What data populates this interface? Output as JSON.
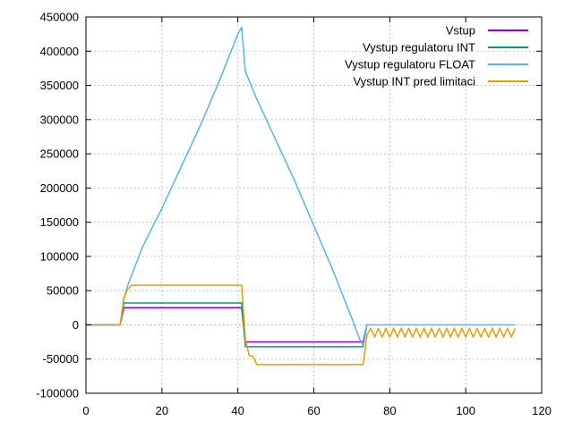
{
  "chart_data": {
    "type": "line",
    "title": "",
    "xlabel": "",
    "ylabel": "",
    "xlim": [
      0,
      120
    ],
    "ylim": [
      -100000,
      450000
    ],
    "grid": true,
    "legend_position": "top-right",
    "x_ticks": [
      0,
      20,
      40,
      60,
      80,
      100,
      120
    ],
    "x_tick_labels": [
      "0",
      "20",
      "40",
      "60",
      "80",
      "100",
      "120"
    ],
    "y_ticks": [
      -100000,
      -50000,
      0,
      50000,
      100000,
      150000,
      200000,
      250000,
      300000,
      350000,
      400000,
      450000
    ],
    "y_tick_labels": [
      "-100000",
      "-50000",
      "0",
      "50000",
      "100000",
      "150000",
      "200000",
      "250000",
      "300000",
      "350000",
      "400000",
      "450000"
    ],
    "series": [
      {
        "name": "Vstup",
        "color": "#9400d3",
        "points": [
          [
            0,
            0
          ],
          [
            9,
            0
          ],
          [
            10,
            25000
          ],
          [
            41,
            25000
          ],
          [
            42,
            -25000
          ],
          [
            73,
            -25000
          ],
          [
            74,
            0
          ]
        ]
      },
      {
        "name": "Vystup regulatoru   INT",
        "color": "#009e73",
        "points": [
          [
            0,
            0
          ],
          [
            9,
            0
          ],
          [
            10,
            32000
          ],
          [
            41,
            32000
          ],
          [
            42,
            -32000
          ],
          [
            73,
            -32000
          ],
          [
            74,
            0
          ]
        ]
      },
      {
        "name": "Vystup regulatoru FLOAT",
        "color": "#56b4e9",
        "points": [
          [
            0,
            0
          ],
          [
            9,
            0
          ],
          [
            10,
            38000
          ],
          [
            11,
            58000
          ],
          [
            15,
            115000
          ],
          [
            20,
            170000
          ],
          [
            25,
            230000
          ],
          [
            30,
            290000
          ],
          [
            35,
            355000
          ],
          [
            40,
            425000
          ],
          [
            41,
            435000
          ],
          [
            42,
            370000
          ],
          [
            45,
            330000
          ],
          [
            50,
            270000
          ],
          [
            55,
            210000
          ],
          [
            60,
            145000
          ],
          [
            65,
            80000
          ],
          [
            70,
            10000
          ],
          [
            72,
            -20000
          ],
          [
            73,
            -30000
          ],
          [
            74,
            0
          ],
          [
            80,
            0
          ],
          [
            90,
            0
          ],
          [
            100,
            0
          ],
          [
            113,
            0
          ]
        ]
      },
      {
        "name": "Vystup INT pred limitaci",
        "color": "#e69f00",
        "points": [
          [
            0,
            0
          ],
          [
            9,
            0
          ],
          [
            10,
            40000
          ],
          [
            11,
            52000
          ],
          [
            12,
            58000
          ],
          [
            41,
            58000
          ],
          [
            42,
            -22000
          ],
          [
            43,
            -45000
          ],
          [
            44,
            -46000
          ],
          [
            45,
            -58000
          ],
          [
            73,
            -58000
          ],
          [
            74,
            -15000
          ],
          [
            75,
            -5000
          ],
          [
            76,
            -18000
          ],
          [
            77,
            -5000
          ],
          [
            78,
            -18000
          ],
          [
            79,
            -5000
          ],
          [
            80,
            -18000
          ],
          [
            81,
            -5000
          ],
          [
            82,
            -18000
          ],
          [
            83,
            -5000
          ],
          [
            84,
            -18000
          ],
          [
            85,
            -5000
          ],
          [
            86,
            -18000
          ],
          [
            87,
            -5000
          ],
          [
            88,
            -18000
          ],
          [
            89,
            -5000
          ],
          [
            90,
            -18000
          ],
          [
            91,
            -5000
          ],
          [
            92,
            -18000
          ],
          [
            93,
            -5000
          ],
          [
            94,
            -18000
          ],
          [
            95,
            -5000
          ],
          [
            96,
            -18000
          ],
          [
            97,
            -5000
          ],
          [
            98,
            -18000
          ],
          [
            99,
            -5000
          ],
          [
            100,
            -18000
          ],
          [
            101,
            -5000
          ],
          [
            102,
            -18000
          ],
          [
            103,
            -5000
          ],
          [
            104,
            -18000
          ],
          [
            105,
            -5000
          ],
          [
            106,
            -18000
          ],
          [
            107,
            -5000
          ],
          [
            108,
            -18000
          ],
          [
            109,
            -5000
          ],
          [
            110,
            -18000
          ],
          [
            111,
            -5000
          ],
          [
            112,
            -18000
          ],
          [
            113,
            -5000
          ]
        ]
      }
    ]
  }
}
